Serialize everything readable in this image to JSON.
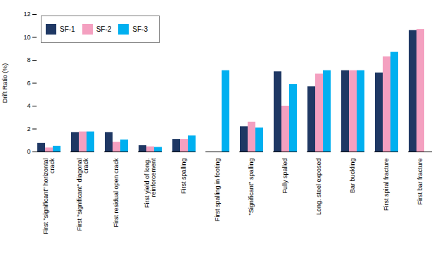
{
  "chart_data": {
    "type": "bar",
    "categories": [
      "First \"significant\" horizontal\ncrack",
      "First \"significant\" diagonal\ncrack",
      "First residual open crack",
      "First yield of long.\nreinforcement",
      "First spalling",
      "First spalling in footing",
      "\"Significant\" spalling",
      "Fully spalled",
      "Long. steel exposed",
      "Bar buckling",
      "First spiral fracture",
      "First bar fracture"
    ],
    "series": [
      {
        "name": "SF-1",
        "color": "#1f3864",
        "values": [
          0.75,
          1.7,
          1.7,
          0.55,
          1.1,
          0.0,
          2.2,
          7.0,
          5.7,
          7.1,
          6.9,
          10.6
        ]
      },
      {
        "name": "SF-2",
        "color": "#f4a0c0",
        "values": [
          0.35,
          1.75,
          0.85,
          0.45,
          1.1,
          0.0,
          2.6,
          4.0,
          6.8,
          7.1,
          8.3,
          10.7
        ]
      },
      {
        "name": "SF-3",
        "color": "#00b0f0",
        "values": [
          0.5,
          1.75,
          1.05,
          0.4,
          1.4,
          7.1,
          2.1,
          5.9,
          7.1,
          7.1,
          8.7,
          0.0
        ]
      }
    ],
    "ylabel": "Drift Ratio (%)",
    "ylim": [
      0,
      12
    ],
    "yticks": [
      0,
      2,
      4,
      6,
      8,
      10,
      12
    ],
    "grid": false,
    "legend": "upper left"
  }
}
